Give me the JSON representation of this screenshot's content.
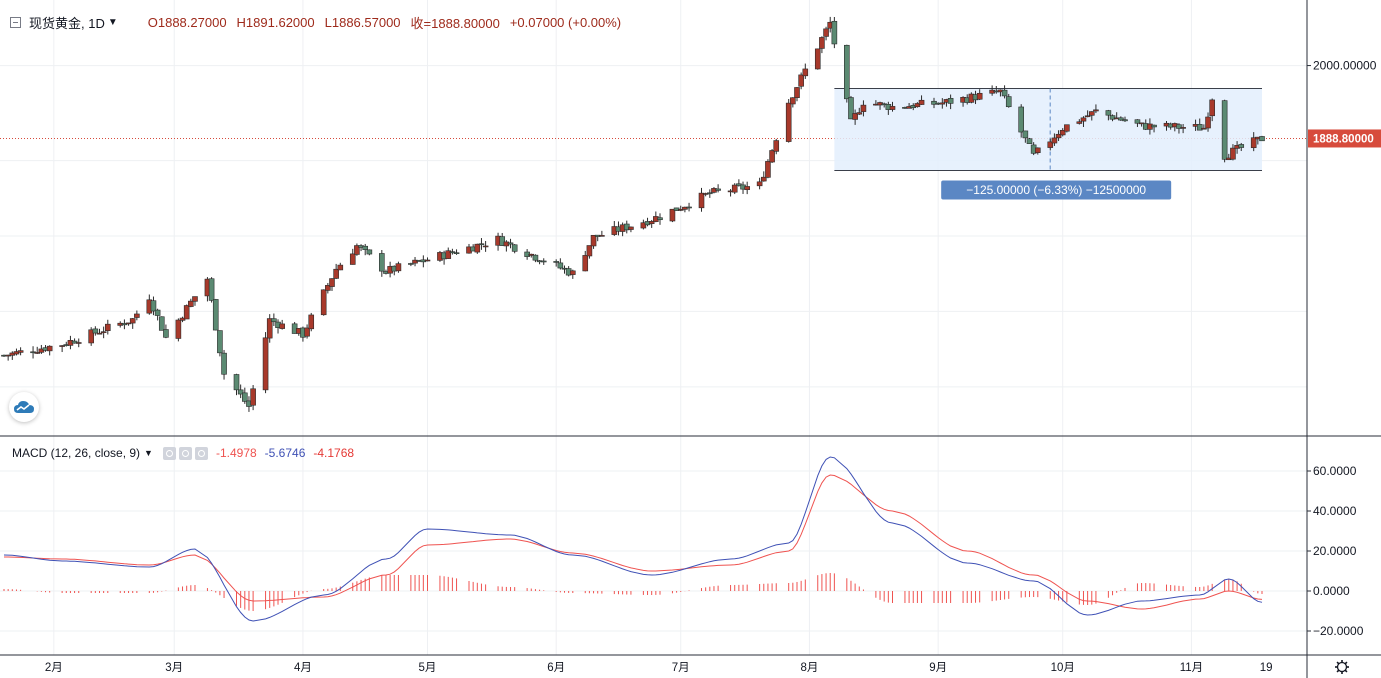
{
  "header": {
    "symbol": "现货黄金, 1D",
    "open": "O1888.27000",
    "high": "H1891.62000",
    "low": "L1886.57000",
    "close": "收=1888.80000",
    "change": "+0.07000 (+0.00%)"
  },
  "price_axis": {
    "labels": [
      "2000.00000"
    ],
    "last_price_label": "1888.80000"
  },
  "range_tool": {
    "label": "−125.00000 (−6.33%) −12500000"
  },
  "macd": {
    "title": "MACD (12, 26, close, 9)",
    "histogram_value": "-1.4978",
    "macd_value": "-5.6746",
    "signal_value": "-4.1768",
    "axis_labels": [
      "60.0000",
      "40.0000",
      "20.0000",
      "0.0000",
      "−20.0000"
    ]
  },
  "time_axis": {
    "labels": [
      "2月",
      "3月",
      "4月",
      "5月",
      "6月",
      "7月",
      "8月",
      "9月",
      "10月",
      "11月",
      "19"
    ]
  },
  "colors": {
    "up": "#a8392b",
    "down": "#5b8a72",
    "macd_line": "#3f51b5",
    "signal_line": "#ef5350",
    "range_fill": "#e3effd",
    "range_label_bg": "#5b87c4",
    "last_price_bg": "#d74b3c"
  },
  "chart_data": {
    "type": "candlestick",
    "title": "现货黄金, 1D",
    "y_axis_range": [
      1435,
      2100
    ],
    "candle_anchors": [
      {
        "date": "2020-01-20",
        "close": 1558
      },
      {
        "date": "2020-02-03",
        "close": 1575
      },
      {
        "date": "2020-02-20",
        "close": 1613
      },
      {
        "date": "2020-02-24",
        "close": 1648
      },
      {
        "date": "2020-02-28",
        "close": 1585
      },
      {
        "date": "2020-03-09",
        "close": 1675
      },
      {
        "date": "2020-03-13",
        "close": 1530
      },
      {
        "date": "2020-03-19",
        "close": 1480
      },
      {
        "date": "2020-03-24",
        "close": 1612
      },
      {
        "date": "2020-04-01",
        "close": 1590
      },
      {
        "date": "2020-04-09",
        "close": 1690
      },
      {
        "date": "2020-04-14",
        "close": 1725
      },
      {
        "date": "2020-04-21",
        "close": 1686
      },
      {
        "date": "2020-05-07",
        "close": 1715
      },
      {
        "date": "2020-05-18",
        "close": 1735
      },
      {
        "date": "2020-06-05",
        "close": 1683
      },
      {
        "date": "2020-06-10",
        "close": 1738
      },
      {
        "date": "2020-06-26",
        "close": 1770
      },
      {
        "date": "2020-07-08",
        "close": 1805
      },
      {
        "date": "2020-07-20",
        "close": 1818
      },
      {
        "date": "2020-07-27",
        "close": 1945
      },
      {
        "date": "2020-08-06",
        "close": 2065
      },
      {
        "date": "2020-08-11",
        "close": 1912
      },
      {
        "date": "2020-08-14",
        "close": 1945
      },
      {
        "date": "2020-08-21",
        "close": 1937
      },
      {
        "date": "2020-09-02",
        "close": 1943
      },
      {
        "date": "2020-09-16",
        "close": 1960
      },
      {
        "date": "2020-09-24",
        "close": 1862
      },
      {
        "date": "2020-10-01",
        "close": 1905
      },
      {
        "date": "2020-10-09",
        "close": 1930
      },
      {
        "date": "2020-10-20",
        "close": 1908
      },
      {
        "date": "2020-11-04",
        "close": 1905
      },
      {
        "date": "2020-11-06",
        "close": 1952
      },
      {
        "date": "2020-11-09",
        "close": 1863
      },
      {
        "date": "2020-11-18",
        "close": 1888.8
      }
    ],
    "range_measure": {
      "top": 1965,
      "bottom": 1840,
      "start": "2020-08-07",
      "end": "2020-11-18"
    },
    "macd_panel": {
      "y_axis_range": [
        -27,
        68
      ],
      "x": [
        "2020-01-20",
        "2020-02-03",
        "2020-02-24",
        "2020-03-06",
        "2020-03-20",
        "2020-04-06",
        "2020-04-21",
        "2020-05-01",
        "2020-05-21",
        "2020-06-05",
        "2020-06-24",
        "2020-07-13",
        "2020-07-27",
        "2020-08-06",
        "2020-08-21",
        "2020-09-08",
        "2020-09-24",
        "2020-10-07",
        "2020-10-20",
        "2020-11-03",
        "2020-11-10",
        "2020-11-18"
      ],
      "series": [
        {
          "name": "MACD",
          "values": [
            18,
            15,
            12,
            21,
            -15,
            -2,
            16,
            31,
            28,
            18,
            8,
            16,
            24,
            67,
            34,
            14,
            5,
            -12,
            -5,
            -2,
            6,
            -5.6746
          ]
        },
        {
          "name": "Signal",
          "values": [
            17,
            16,
            13,
            18,
            -5,
            -3,
            8,
            23,
            26,
            19,
            10,
            13,
            20,
            58,
            40,
            20,
            8,
            -5,
            -9,
            -4,
            0,
            -4.1768
          ]
        }
      ]
    }
  }
}
